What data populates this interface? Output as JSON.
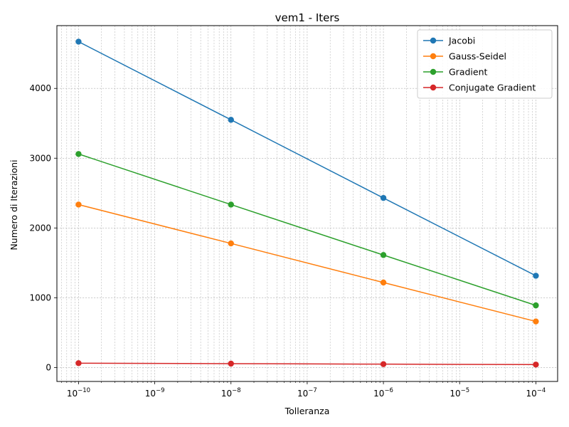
{
  "chart_data": {
    "type": "line",
    "title": "vem1 - Iters",
    "xlabel": "Tolleranza",
    "ylabel": "Numero di Iterazioni",
    "xscale": "log",
    "x": [
      1e-10,
      1e-08,
      1e-06,
      0.0001
    ],
    "xlim": [
      5.2e-11,
      0.000193
    ],
    "ylim": [
      -200,
      4900
    ],
    "xticks": [
      {
        "value": 1e-10,
        "base": "10",
        "exp": "−10"
      },
      {
        "value": 1e-09,
        "base": "10",
        "exp": "−9"
      },
      {
        "value": 1e-08,
        "base": "10",
        "exp": "−8"
      },
      {
        "value": 1e-07,
        "base": "10",
        "exp": "−7"
      },
      {
        "value": 1e-06,
        "base": "10",
        "exp": "−6"
      },
      {
        "value": 1e-05,
        "base": "10",
        "exp": "−5"
      },
      {
        "value": 0.0001,
        "base": "10",
        "exp": "−4"
      }
    ],
    "yticks": [
      0,
      1000,
      2000,
      3000,
      4000
    ],
    "grid": true,
    "legend_position": "top-right",
    "series": [
      {
        "name": "Jacobi",
        "color": "#1f77b4",
        "values": [
          4670,
          3550,
          2430,
          1315
        ]
      },
      {
        "name": "Gauss-Seidel",
        "color": "#ff7f0e",
        "values": [
          2335,
          1778,
          1218,
          660
        ]
      },
      {
        "name": "Gradient",
        "color": "#2ca02c",
        "values": [
          3060,
          2335,
          1612,
          890
        ]
      },
      {
        "name": "Conjugate Gradient",
        "color": "#d62728",
        "values": [
          62,
          55,
          48,
          42
        ]
      }
    ]
  }
}
